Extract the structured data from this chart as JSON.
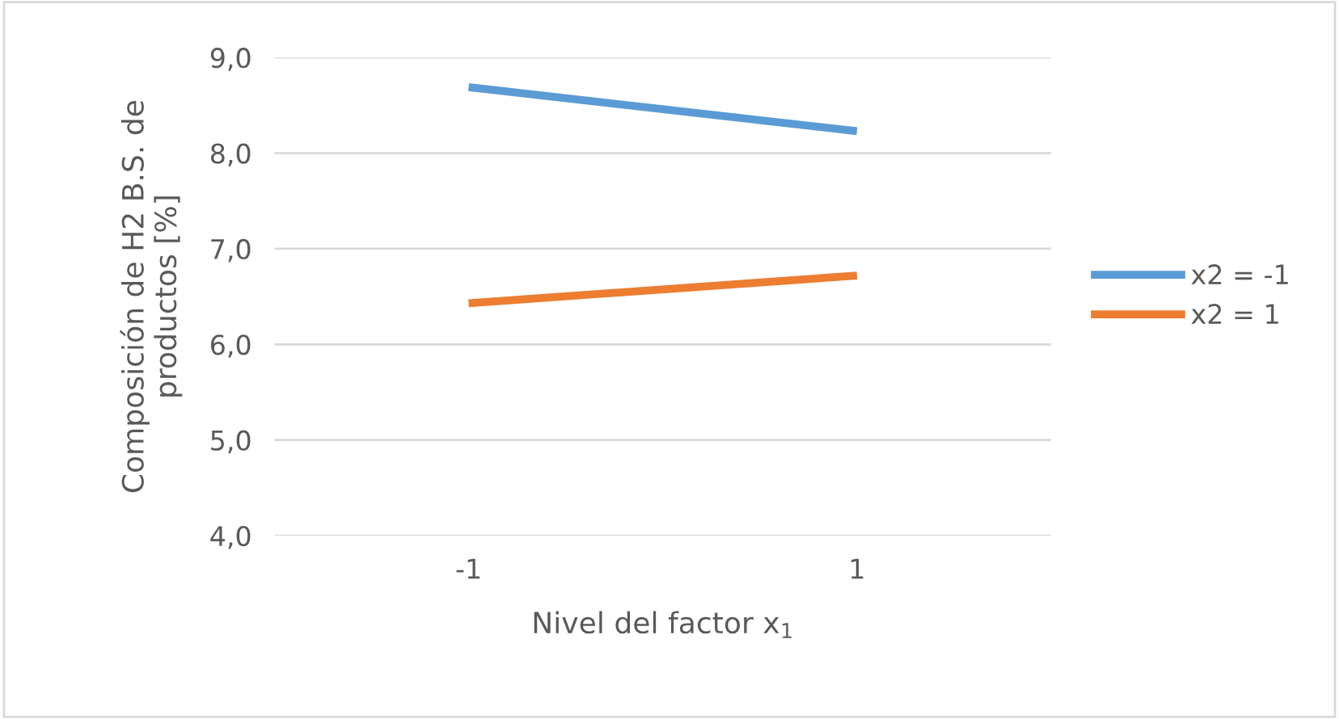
{
  "chart_data": {
    "type": "line",
    "xlabel": "Nivel del factor x$_{1}$",
    "ylabel": "Composición de H2 B.S. de\nproductos [%]",
    "categories": [
      "-1",
      "1"
    ],
    "series": [
      {
        "name": "x2 = -1",
        "color": "#5b9bd5",
        "values": [
          8.69,
          8.23
        ]
      },
      {
        "name": "x2 = 1",
        "color": "#ed7d31",
        "values": [
          6.43,
          6.72
        ]
      }
    ],
    "ylim": [
      4.0,
      9.0
    ],
    "yticks": [
      {
        "value": 4.0,
        "label": "4,0"
      },
      {
        "value": 5.0,
        "label": "5,0"
      },
      {
        "value": 6.0,
        "label": "6,0"
      },
      {
        "value": 7.0,
        "label": "7,0"
      },
      {
        "value": 8.0,
        "label": "8,0"
      },
      {
        "value": 9.0,
        "label": "9,0"
      }
    ],
    "grid": "y",
    "legend": "right",
    "marker": "none",
    "line_style": "solid"
  }
}
